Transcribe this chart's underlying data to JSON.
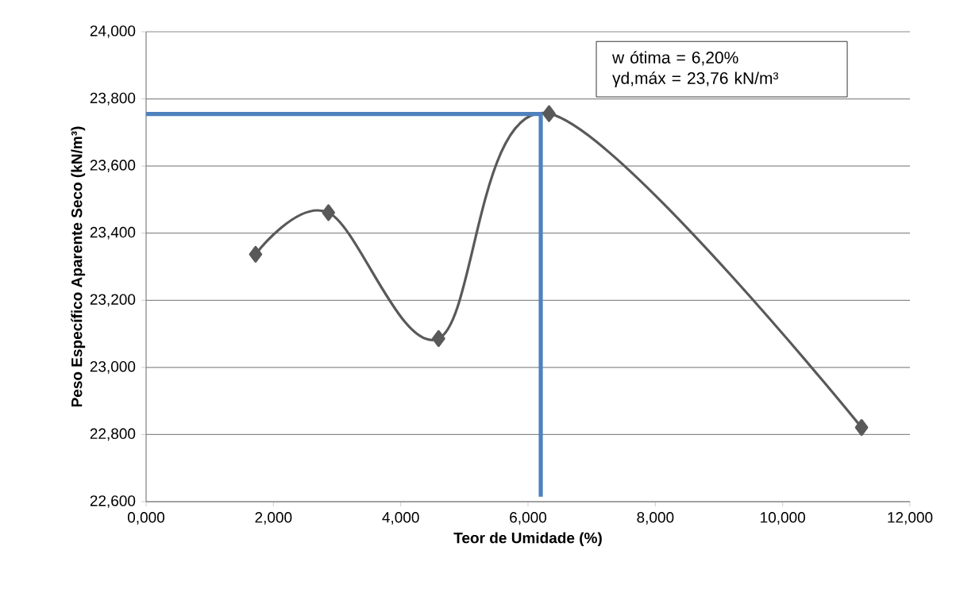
{
  "chart_data": {
    "type": "line",
    "xlabel": "Teor de Umidade (%)",
    "ylabel": "Peso Específico Aparente Seco (kN/m³)",
    "series": [
      {
        "color": "#595959",
        "x": [
          1.72,
          2.865,
          4.595,
          6.33,
          11.24
        ],
        "values": [
          23.337,
          23.461,
          23.086,
          23.756,
          22.821
        ],
        "marker": "diamond"
      },
      {
        "color": "#4f81bd",
        "x": [
          0,
          6.2,
          6.2
        ],
        "values": [
          23.755,
          23.755,
          22.615
        ],
        "marker": "none"
      }
    ],
    "xlim": [
      0,
      12
    ],
    "ylim": [
      22.6,
      24
    ],
    "xticks": [
      {
        "value": 0,
        "label": "0,000"
      },
      {
        "value": 2,
        "label": "2,000"
      },
      {
        "value": 4,
        "label": "4,000"
      },
      {
        "value": 6,
        "label": "6,000"
      },
      {
        "value": 8,
        "label": "8,000"
      },
      {
        "value": 10,
        "label": "10,000"
      },
      {
        "value": 12,
        "label": "12,000"
      }
    ],
    "yticks": [
      {
        "value": 22.6,
        "label": "22,600"
      },
      {
        "value": 22.8,
        "label": "22,800"
      },
      {
        "value": 23,
        "label": "23,000"
      },
      {
        "value": 23.2,
        "label": "23,200"
      },
      {
        "value": 23.4,
        "label": "23,400"
      },
      {
        "value": 23.6,
        "label": "23,600"
      },
      {
        "value": 23.8,
        "label": "23,800"
      },
      {
        "value": 24,
        "label": "24,000"
      }
    ],
    "grid": "y",
    "annotations": [
      "w ótima = 6,20%",
      "γd,máx = 23,76 kN/m³"
    ]
  }
}
